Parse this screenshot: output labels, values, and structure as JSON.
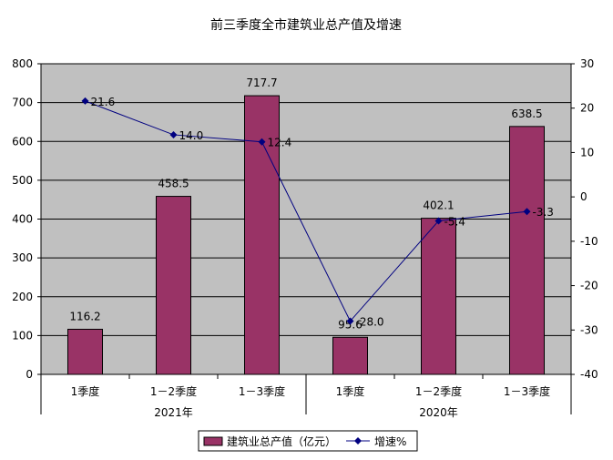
{
  "chart_data": {
    "type": "bar",
    "title": "前三季度全市建筑业总产值及增速",
    "categories": [
      "1季度",
      "1－2季度",
      "1－3季度",
      "1季度",
      "1－2季度",
      "1－3季度"
    ],
    "groups": [
      {
        "label": "2021年",
        "from": 0,
        "to": 2
      },
      {
        "label": "2020年",
        "from": 3,
        "to": 5
      }
    ],
    "series": [
      {
        "name": "建筑业总产值（亿元）",
        "type": "bar",
        "axis": "left",
        "color": "#993366",
        "values": [
          116.2,
          458.5,
          717.7,
          95.6,
          402.1,
          638.5
        ],
        "labels": [
          "116.2",
          "458.5",
          "717.7",
          "95.6",
          "402.1",
          "638.5"
        ]
      },
      {
        "name": "增速%",
        "type": "line",
        "axis": "right",
        "color": "#000080",
        "values": [
          21.6,
          14.0,
          12.4,
          -28.0,
          -5.4,
          -3.3
        ],
        "labels": [
          "21.6",
          "14.0",
          "12.4",
          "-28.0",
          "-5.4",
          "-3.3"
        ]
      }
    ],
    "ylim": [
      0,
      800
    ],
    "yticks": [
      0,
      100,
      200,
      300,
      400,
      500,
      600,
      700,
      800
    ],
    "y2lim": [
      -40,
      30
    ],
    "y2ticks": [
      -40,
      -30,
      -20,
      -10,
      0,
      10,
      20,
      30
    ],
    "grid": true,
    "plot_background": "#c0c0c0",
    "legend_position": "bottom"
  }
}
